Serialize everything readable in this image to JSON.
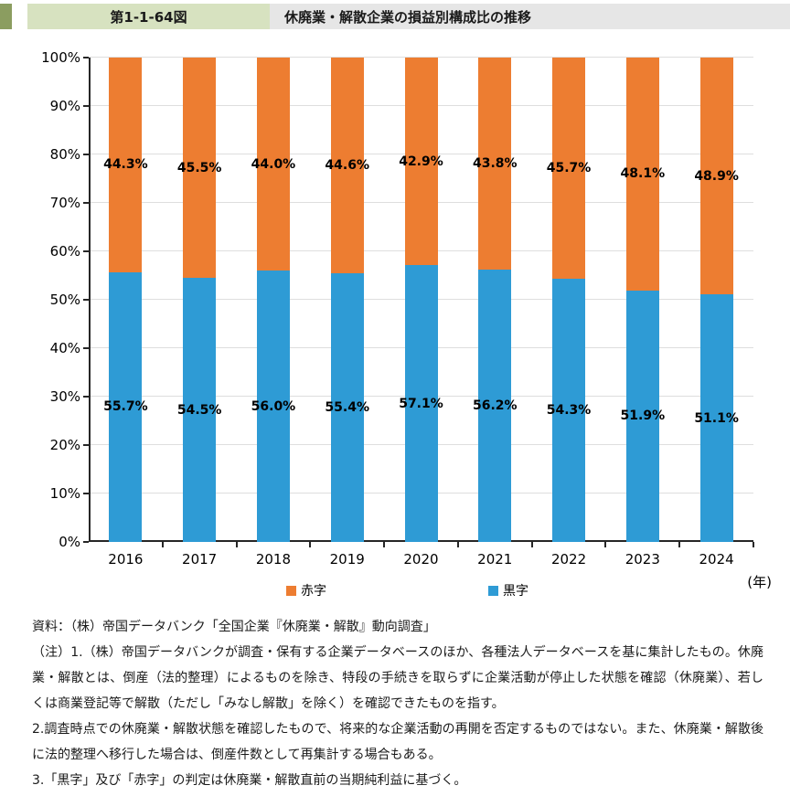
{
  "header": {
    "figure_number": "第1-1-64図",
    "title": "休廃業・解散企業の損益別構成比の推移",
    "accent_color": "#8B9D60",
    "figure_box_color": "#D7E2C0",
    "title_bar_color": "#E6E6E6"
  },
  "chart_data": {
    "type": "bar",
    "subtype": "stacked-100pct-column",
    "title": "休廃業・解散企業の損益別構成比の推移",
    "categories": [
      "2016",
      "2017",
      "2018",
      "2019",
      "2020",
      "2021",
      "2022",
      "2023",
      "2024"
    ],
    "series": [
      {
        "name": "黒字",
        "color": "#2E9BD5",
        "values": [
          55.7,
          54.5,
          56.0,
          55.4,
          57.1,
          56.2,
          54.3,
          51.9,
          51.1
        ]
      },
      {
        "name": "赤字",
        "color": "#ED7D31",
        "values": [
          44.3,
          45.5,
          44.0,
          44.6,
          42.9,
          43.8,
          45.7,
          48.1,
          48.9
        ]
      }
    ],
    "ylim": [
      0,
      100
    ],
    "ytick_step": 10,
    "ytick_suffix": "%",
    "xaxis_unit_label": "(年)",
    "grid": true,
    "grid_color": "#DEDEDE",
    "axis_color": "#262626",
    "legend": [
      "赤字",
      "黒字"
    ],
    "legend_position": "bottom",
    "value_label_format": "0.0%"
  },
  "footnotes": {
    "source": "資料：（株）帝国データバンク「全国企業『休廃業・解散』動向調査」",
    "note1": "（注）1.（株）帝国データバンクが調査・保有する企業データベースのほか、各種法人データベースを基に集計したもの。休廃業・解散とは、倒産（法的整理）によるものを除き、特段の手続きを取らずに企業活動が停止した状態を確認（休廃業）、若しくは商業登記等で解散（ただし「みなし解散」を除く）を確認できたものを指す。",
    "note2": "2.調査時点での休廃業・解散状態を確認したもので、将来的な企業活動の再開を否定するものではない。また、休廃業・解散後に法的整理へ移行した場合は、倒産件数として再集計する場合もある。",
    "note3": "3.「黒字」及び「赤字」の判定は休廃業・解散直前の当期純利益に基づく。"
  }
}
